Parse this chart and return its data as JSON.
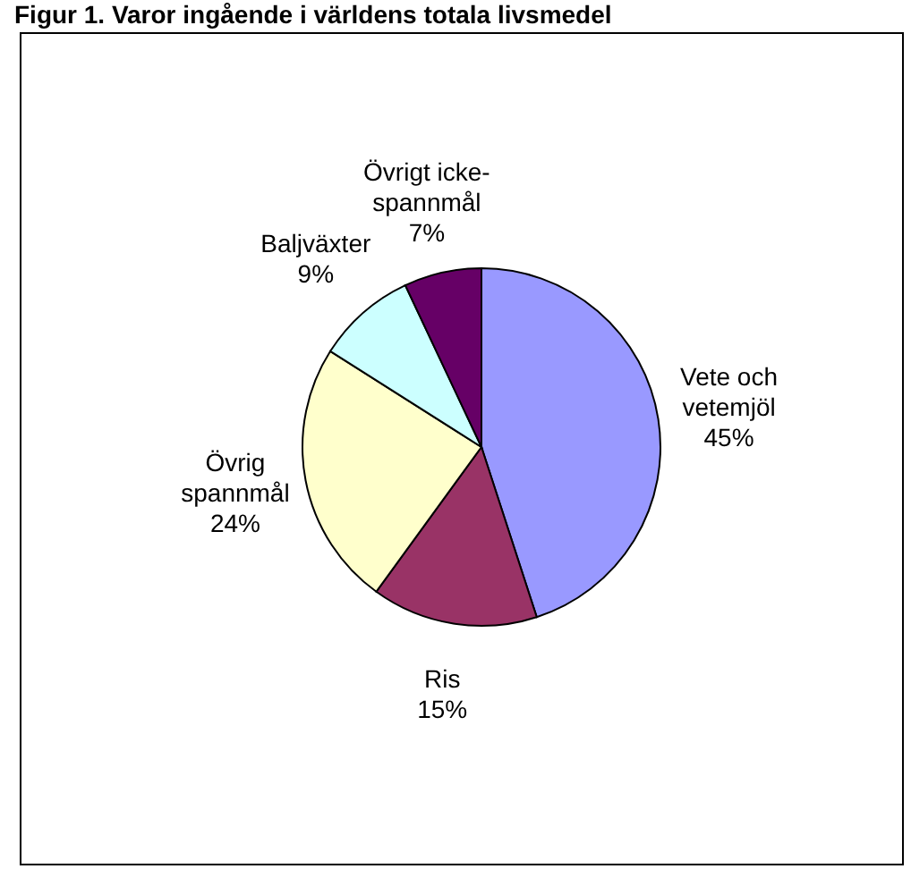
{
  "chart_data": {
    "type": "pie",
    "title": "Figur 1. Varor ingående i världens totala livsmedel",
    "categories": [
      "Vete och vetemjöl",
      "Ris",
      "Övrig spannmål",
      "Baljväxter",
      "Övrigt icke-spannmål"
    ],
    "values": [
      45,
      15,
      24,
      9,
      7
    ],
    "value_labels": [
      "45%",
      "15%",
      "24%",
      "9%",
      "7%"
    ],
    "colors": [
      "#9999ff",
      "#993366",
      "#ffffcc",
      "#ccffff",
      "#660066"
    ],
    "legend": false
  }
}
